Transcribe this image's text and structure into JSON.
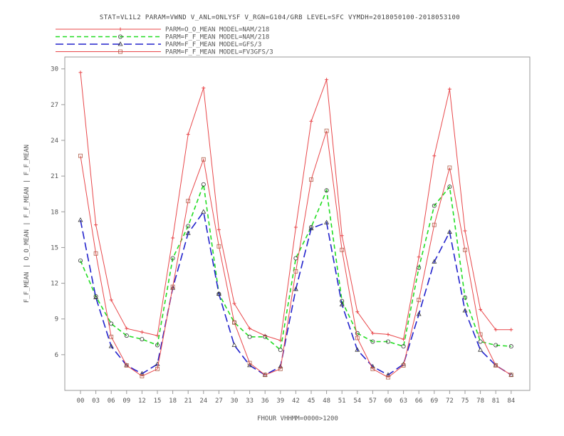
{
  "chart_data": {
    "type": "line",
    "title": "STAT=VL1L2 PARAM=VWND V_ANL=ONLYSF V_RGN=G104/GRB LEVEL=SFC VYMDH=2018050100-2018053100",
    "xlabel": "FHOUR VHHMM=0000>1200",
    "ylabel": "F_F_MEAN | O_O_MEAN | F_F_MEAN | F_F_MEAN",
    "ylim": [
      3,
      31
    ],
    "yticks": [
      6,
      9,
      12,
      15,
      18,
      21,
      24,
      27,
      30
    ],
    "categories": [
      "00",
      "03",
      "06",
      "09",
      "12",
      "15",
      "18",
      "21",
      "24",
      "27",
      "30",
      "33",
      "36",
      "39",
      "42",
      "45",
      "48",
      "51",
      "54",
      "57",
      "60",
      "63",
      "66",
      "69",
      "72",
      "75",
      "78",
      "81",
      "84"
    ],
    "grid": false,
    "legend_position": "top",
    "series": [
      {
        "name": "PARM=O_O_MEAN MODEL=NAM/218",
        "color": "#e8474a",
        "dash": "solid",
        "marker": "plus",
        "values": [
          29.7,
          16.9,
          10.6,
          8.2,
          7.9,
          7.6,
          15.8,
          24.5,
          28.4,
          16.5,
          10.3,
          8.2,
          7.6,
          7.2,
          16.7,
          25.6,
          29.1,
          16.0,
          9.6,
          7.8,
          7.7,
          7.3,
          14.2,
          22.7,
          28.3,
          16.4,
          9.8,
          8.1,
          8.1
        ]
      },
      {
        "name": "PARM=F_F_MEAN MODEL=NAM/218",
        "color": "#22dd22",
        "dash": "medium",
        "marker": "circle",
        "values": [
          13.9,
          10.9,
          8.6,
          7.6,
          7.3,
          6.8,
          14.1,
          16.8,
          20.3,
          11.1,
          8.7,
          7.5,
          7.5,
          6.4,
          14.1,
          16.7,
          19.8,
          10.5,
          7.8,
          7.1,
          7.1,
          6.7,
          13.3,
          18.5,
          20.1,
          10.8,
          7.1,
          6.8,
          6.7
        ]
      },
      {
        "name": "PARM=F_F_MEAN MODEL=GFS/3",
        "color": "#2222cc",
        "dash": "long",
        "marker": "triangle",
        "values": [
          17.3,
          10.8,
          6.7,
          5.1,
          4.4,
          5.2,
          11.6,
          16.2,
          18.0,
          11.1,
          6.8,
          5.1,
          4.3,
          5.0,
          11.5,
          16.6,
          17.1,
          10.2,
          6.4,
          5.0,
          4.3,
          5.2,
          9.4,
          13.8,
          16.3,
          9.7,
          6.4,
          5.1,
          4.3
        ]
      },
      {
        "name": "PARM=F_F_MEAN MODEL=FV3GFS/3",
        "color": "#e8474a",
        "dash": "solid",
        "marker": "square",
        "values": [
          22.7,
          14.5,
          7.5,
          5.1,
          4.2,
          4.8,
          11.7,
          18.9,
          22.4,
          15.1,
          8.7,
          5.3,
          4.3,
          4.8,
          13.0,
          20.7,
          24.8,
          14.8,
          7.4,
          4.8,
          4.1,
          5.1,
          10.6,
          16.9,
          21.7,
          14.8,
          7.7,
          5.1,
          4.3
        ]
      }
    ]
  }
}
